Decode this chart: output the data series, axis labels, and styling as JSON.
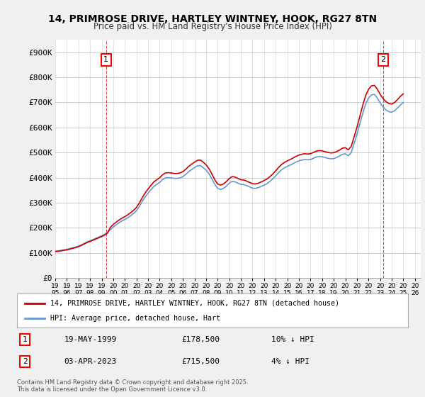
{
  "title_line1": "14, PRIMROSE DRIVE, HARTLEY WINTNEY, HOOK, RG27 8TN",
  "title_line2": "Price paid vs. HM Land Registry's House Price Index (HPI)",
  "xlabel": "",
  "ylabel": "",
  "ylim": [
    0,
    950000
  ],
  "yticks": [
    0,
    100000,
    200000,
    300000,
    400000,
    500000,
    600000,
    700000,
    800000,
    900000
  ],
  "ytick_labels": [
    "£0",
    "£100K",
    "£200K",
    "£300K",
    "£400K",
    "£500K",
    "£600K",
    "£700K",
    "£800K",
    "£900K"
  ],
  "xmin": 1995.0,
  "xmax": 2026.5,
  "bg_color": "#f0f0f0",
  "plot_bg_color": "#ffffff",
  "grid_color": "#cccccc",
  "line_red_color": "#cc0000",
  "line_blue_color": "#6699cc",
  "marker1_date": 1999.38,
  "marker1_value": 178500,
  "marker1_label": "1",
  "marker2_date": 2023.25,
  "marker2_value": 715500,
  "marker2_label": "2",
  "legend_line1": "14, PRIMROSE DRIVE, HARTLEY WINTNEY, HOOK, RG27 8TN (detached house)",
  "legend_line2": "HPI: Average price, detached house, Hart",
  "table_row1_num": "1",
  "table_row1_date": "19-MAY-1999",
  "table_row1_price": "£178,500",
  "table_row1_hpi": "10% ↓ HPI",
  "table_row2_num": "2",
  "table_row2_date": "03-APR-2023",
  "table_row2_price": "£715,500",
  "table_row2_hpi": "4% ↓ HPI",
  "footer": "Contains HM Land Registry data © Crown copyright and database right 2025.\nThis data is licensed under the Open Government Licence v3.0.",
  "hpi_years": [
    1995.0,
    1995.25,
    1995.5,
    1995.75,
    1996.0,
    1996.25,
    1996.5,
    1996.75,
    1997.0,
    1997.25,
    1997.5,
    1997.75,
    1998.0,
    1998.25,
    1998.5,
    1998.75,
    1999.0,
    1999.25,
    1999.5,
    1999.75,
    2000.0,
    2000.25,
    2000.5,
    2000.75,
    2001.0,
    2001.25,
    2001.5,
    2001.75,
    2002.0,
    2002.25,
    2002.5,
    2002.75,
    2003.0,
    2003.25,
    2003.5,
    2003.75,
    2004.0,
    2004.25,
    2004.5,
    2004.75,
    2005.0,
    2005.25,
    2005.5,
    2005.75,
    2006.0,
    2006.25,
    2006.5,
    2006.75,
    2007.0,
    2007.25,
    2007.5,
    2007.75,
    2008.0,
    2008.25,
    2008.5,
    2008.75,
    2009.0,
    2009.25,
    2009.5,
    2009.75,
    2010.0,
    2010.25,
    2010.5,
    2010.75,
    2011.0,
    2011.25,
    2011.5,
    2011.75,
    2012.0,
    2012.25,
    2012.5,
    2012.75,
    2013.0,
    2013.25,
    2013.5,
    2013.75,
    2014.0,
    2014.25,
    2014.5,
    2014.75,
    2015.0,
    2015.25,
    2015.5,
    2015.75,
    2016.0,
    2016.25,
    2016.5,
    2016.75,
    2017.0,
    2017.25,
    2017.5,
    2017.75,
    2018.0,
    2018.25,
    2018.5,
    2018.75,
    2019.0,
    2019.25,
    2019.5,
    2019.75,
    2020.0,
    2020.25,
    2020.5,
    2020.75,
    2021.0,
    2021.25,
    2021.5,
    2021.75,
    2022.0,
    2022.25,
    2022.5,
    2022.75,
    2023.0,
    2023.25,
    2023.5,
    2023.75,
    2024.0,
    2024.25,
    2024.5,
    2024.75,
    2025.0
  ],
  "hpi_values": [
    107000,
    108000,
    110000,
    112000,
    114000,
    117000,
    120000,
    123000,
    127000,
    132000,
    138000,
    144000,
    148000,
    153000,
    158000,
    163000,
    168000,
    174000,
    182000,
    192000,
    203000,
    212000,
    220000,
    227000,
    233000,
    240000,
    248000,
    257000,
    268000,
    285000,
    305000,
    323000,
    338000,
    352000,
    365000,
    373000,
    381000,
    392000,
    399000,
    400000,
    399000,
    397000,
    397000,
    399000,
    404000,
    413000,
    424000,
    432000,
    440000,
    447000,
    448000,
    440000,
    430000,
    415000,
    395000,
    373000,
    357000,
    353000,
    357000,
    366000,
    378000,
    385000,
    383000,
    378000,
    373000,
    372000,
    368000,
    363000,
    358000,
    357000,
    360000,
    365000,
    370000,
    376000,
    385000,
    395000,
    407000,
    420000,
    431000,
    439000,
    445000,
    450000,
    456000,
    462000,
    467000,
    470000,
    472000,
    471000,
    472000,
    477000,
    482000,
    484000,
    483000,
    480000,
    477000,
    475000,
    476000,
    480000,
    486000,
    493000,
    495000,
    487000,
    499000,
    535000,
    572000,
    614000,
    656000,
    693000,
    717000,
    730000,
    732000,
    718000,
    698000,
    682000,
    670000,
    663000,
    661000,
    667000,
    678000,
    690000,
    700000
  ],
  "price_years": [
    1999.38,
    2023.25
  ],
  "price_values": [
    178500,
    715500
  ]
}
